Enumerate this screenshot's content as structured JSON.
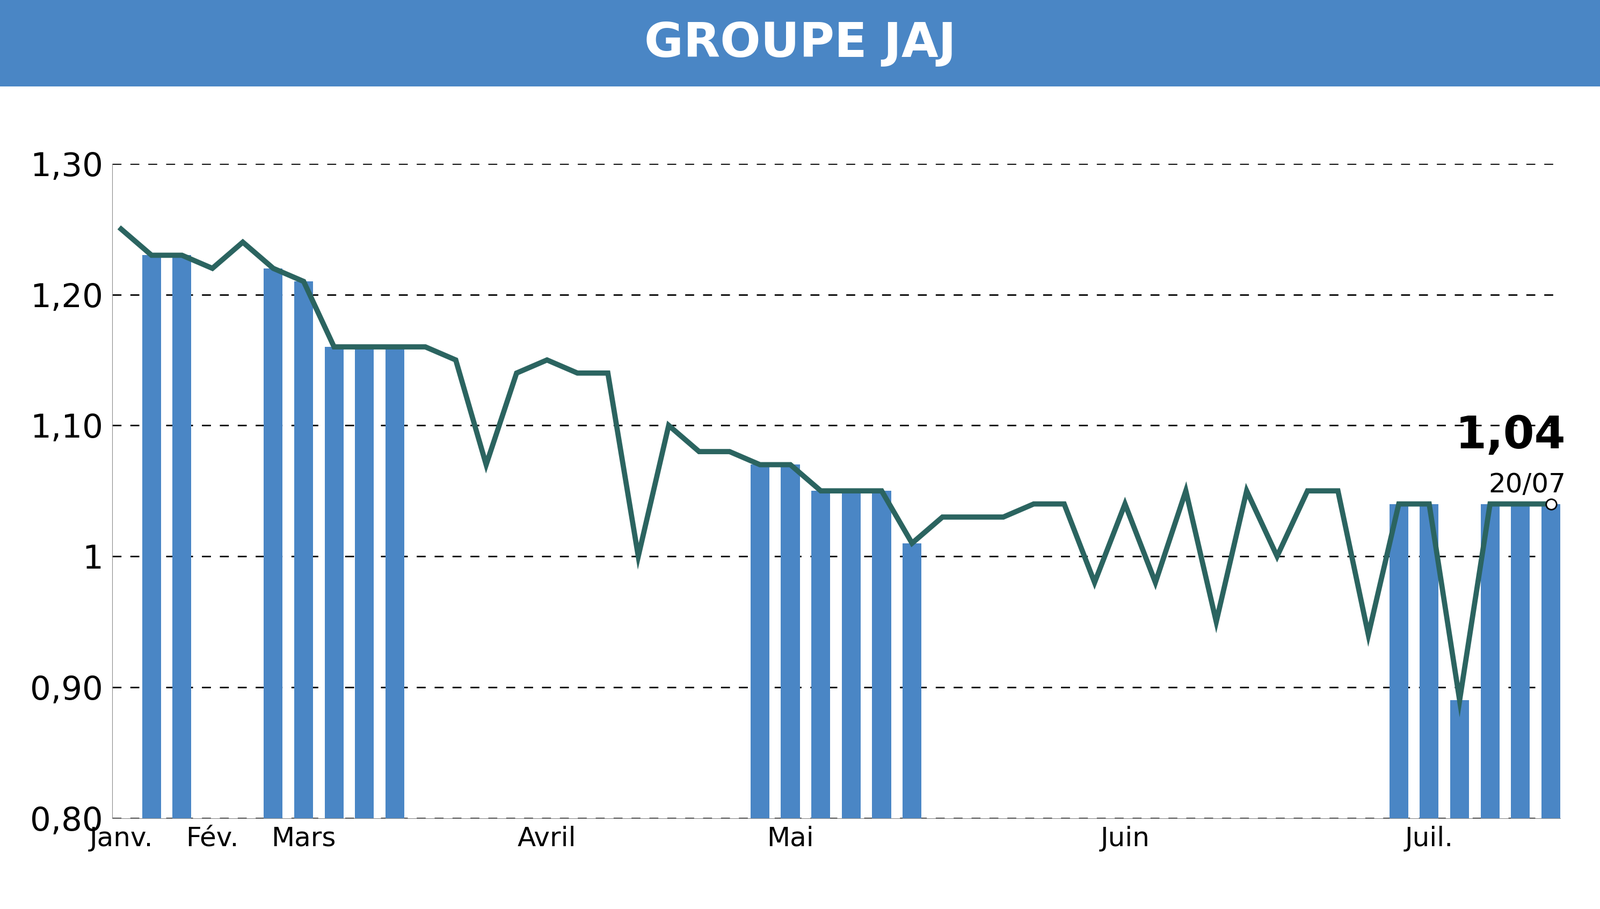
{
  "chart_data": {
    "type": "line",
    "title": "GROUPE JAJ",
    "categories": [
      "Janv.",
      null,
      null,
      "Fév.",
      null,
      null,
      "Mars",
      null,
      null,
      null,
      null,
      null,
      null,
      null,
      "Avril",
      null,
      null,
      null,
      null,
      null,
      null,
      null,
      "Mai",
      null,
      null,
      null,
      null,
      null,
      null,
      null,
      null,
      null,
      null,
      "Juin",
      null,
      null,
      null,
      null,
      null,
      null,
      null,
      null,
      null,
      "Juil.",
      null,
      null,
      null,
      null
    ],
    "series": [
      {
        "type": "line",
        "color": "#2b6460",
        "values": [
          1.25,
          1.23,
          1.23,
          1.22,
          1.24,
          1.22,
          1.21,
          1.16,
          1.16,
          1.16,
          1.16,
          1.15,
          1.07,
          1.14,
          1.15,
          1.14,
          1.14,
          1.0,
          1.1,
          1.08,
          1.08,
          1.07,
          1.07,
          1.05,
          1.05,
          1.05,
          1.01,
          1.03,
          1.03,
          1.03,
          1.04,
          1.04,
          0.98,
          1.04,
          0.98,
          1.05,
          0.95,
          1.05,
          1.0,
          1.05,
          1.05,
          0.94,
          1.04,
          1.04,
          0.89,
          1.04,
          1.04,
          1.04
        ]
      },
      {
        "type": "bar",
        "color": "#4a86c5",
        "values": [
          null,
          1.23,
          1.23,
          null,
          null,
          1.22,
          1.21,
          1.16,
          1.16,
          1.16,
          null,
          null,
          null,
          null,
          null,
          null,
          null,
          null,
          null,
          null,
          null,
          1.07,
          1.07,
          1.05,
          1.05,
          1.05,
          1.01,
          null,
          null,
          null,
          null,
          null,
          null,
          null,
          null,
          null,
          null,
          null,
          null,
          null,
          null,
          null,
          1.04,
          1.04,
          0.89,
          1.04,
          1.04,
          1.04
        ]
      }
    ],
    "ylim": [
      0.8,
      1.3
    ],
    "yticks": [
      {
        "value": 0.8,
        "label": "0,80"
      },
      {
        "value": 0.9,
        "label": "0,90"
      },
      1,
      {
        "value": 1.1,
        "label": "1,10"
      },
      {
        "value": 1.2,
        "label": "1,20"
      },
      {
        "value": 1.3,
        "label": "1,30"
      }
    ],
    "grid": true,
    "annotations": [
      "1,04",
      "20/07"
    ]
  }
}
